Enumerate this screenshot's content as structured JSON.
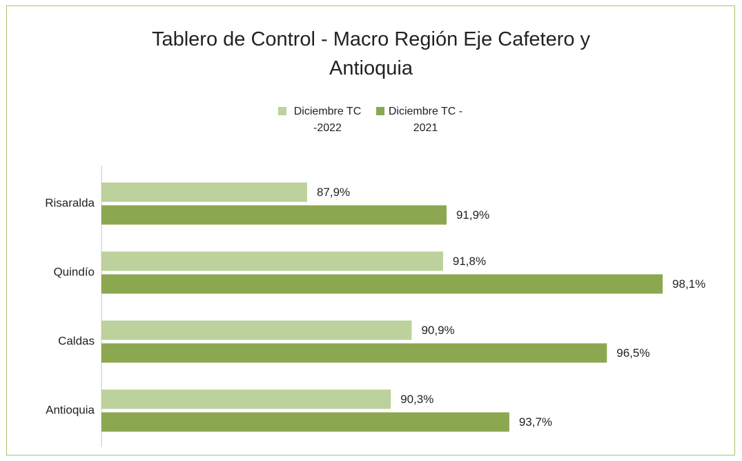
{
  "chart_data": {
    "type": "barh",
    "title": "Tablero de Control - Macro Región Eje Cafetero y Antioquia",
    "categories": [
      "Risaralda",
      "Quindío",
      "Caldas",
      "Antioquia"
    ],
    "series": [
      {
        "name": "Diciembre TC -2022",
        "color": "#bcd19b",
        "values": [
          87.9,
          91.8,
          90.9,
          90.3
        ],
        "value_labels": [
          "87,9%",
          "91,8%",
          "90,9%",
          "90,3%"
        ]
      },
      {
        "name": "Diciembre TC - 2021",
        "color": "#8ba74f",
        "values": [
          91.9,
          98.1,
          96.5,
          93.7
        ],
        "value_labels": [
          "91,9%",
          "98,1%",
          "96,5%",
          "93,7%"
        ]
      }
    ],
    "xlim": [
      82,
      100
    ],
    "legend": "top"
  }
}
